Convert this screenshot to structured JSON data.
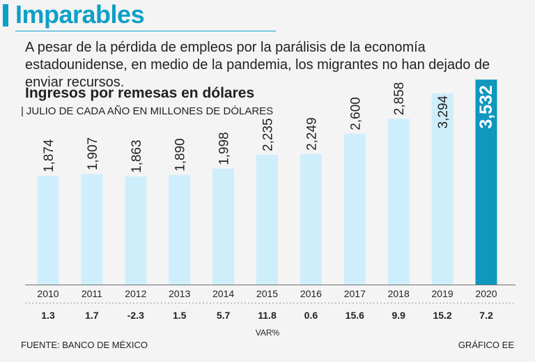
{
  "header": {
    "title": "Imparables",
    "subtitle": "A pesar de la pérdida de empleos por la parálisis de la economía estadounidense, en medio de la pandemia, los migrantes no han dejado de enviar recursos."
  },
  "chart_data": {
    "type": "bar",
    "title": "Ingresos por remesas en dólares",
    "subtitle": "JULIO DE CADA AÑO EN MILLONES DE DÓLARES",
    "categories": [
      "2010",
      "2011",
      "2012",
      "2013",
      "2014",
      "2015",
      "2016",
      "2017",
      "2018",
      "2019",
      "2020"
    ],
    "values": [
      1874,
      1907,
      1863,
      1890,
      1998,
      2235,
      2249,
      2600,
      2858,
      3294,
      3532
    ],
    "value_labels": [
      "1,874",
      "1,907",
      "1,863",
      "1,890",
      "1,998",
      "2,235",
      "2,249",
      "2,600",
      "2,858",
      "3,294",
      "3,532"
    ],
    "var_pct": [
      "1.3",
      "1.7",
      "-2.3",
      "1.5",
      "5.7",
      "11.8",
      "0.6",
      "15.6",
      "9.9",
      "15.2",
      "7.2"
    ],
    "var_label": "VAR%",
    "highlight_index": 10,
    "colors": {
      "bar": "#cfeefb",
      "highlight": "#1097be",
      "accent": "#0e9fc6"
    }
  },
  "footer": {
    "source": "FUENTE: BANCO DE MÉXICO",
    "credit": "GRÁFICO EE"
  }
}
